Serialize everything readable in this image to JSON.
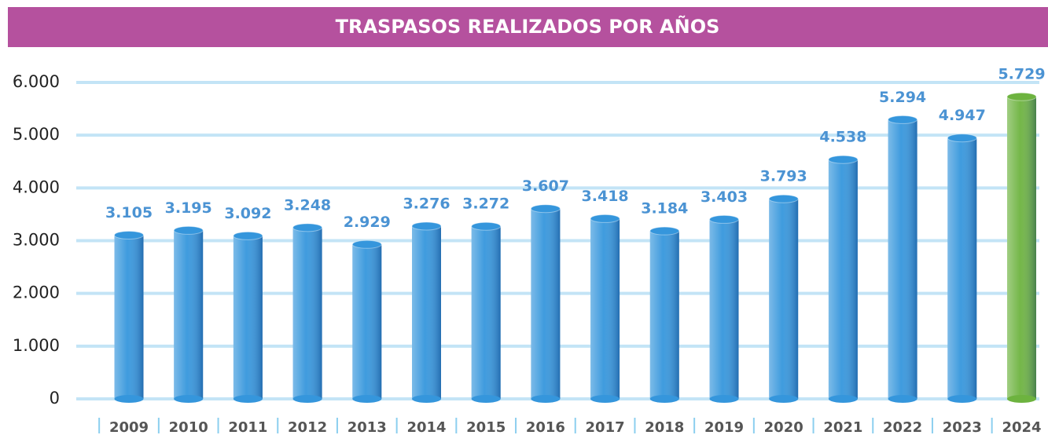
{
  "chart_data": {
    "type": "bar",
    "title": "TRASPASOS REALIZADOS POR AÑOS",
    "categories": [
      "2009",
      "2010",
      "2011",
      "2012",
      "2013",
      "2014",
      "2015",
      "2016",
      "2017",
      "2018",
      "2019",
      "2020",
      "2021",
      "2022",
      "2023",
      "2024"
    ],
    "values": [
      3105,
      3195,
      3092,
      3248,
      2929,
      3276,
      3272,
      3607,
      3418,
      3184,
      3403,
      3793,
      4538,
      5294,
      4947,
      5729
    ],
    "value_labels": [
      "3.105",
      "3.195",
      "3.092",
      "3.248",
      "2.929",
      "3.276",
      "3.272",
      "3.607",
      "3.418",
      "3.184",
      "3.403",
      "3.793",
      "4.538",
      "5.294",
      "4.947",
      "5.729"
    ],
    "colors": [
      "#3596dc",
      "#3596dc",
      "#3596dc",
      "#3596dc",
      "#3596dc",
      "#3596dc",
      "#3596dc",
      "#3596dc",
      "#3596dc",
      "#3596dc",
      "#3596dc",
      "#3596dc",
      "#3596dc",
      "#3596dc",
      "#3596dc",
      "#6db33f"
    ],
    "ylim": [
      0,
      6000
    ],
    "yticks": [
      0,
      {
        "value": 1000,
        "label": "1.000"
      },
      {
        "value": 2000,
        "label": "2.000"
      },
      {
        "value": 3000,
        "label": "3.000"
      },
      {
        "value": 4000,
        "label": "4.000"
      },
      {
        "value": 5000,
        "label": "5.000"
      },
      {
        "value": 6000,
        "label": "6.000"
      }
    ],
    "grid": true
  }
}
